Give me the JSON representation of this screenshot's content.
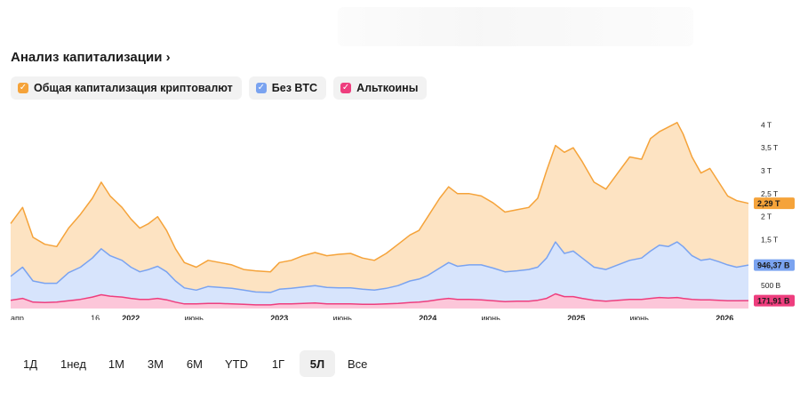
{
  "title": "Анализ капитализации",
  "title_icon": "chevron-right-icon",
  "legend": [
    {
      "label": "Общая капитализация криптовалют",
      "color": "#f5a33a"
    },
    {
      "label": "Без BTC",
      "color": "#7aa3f0"
    },
    {
      "label": "Альткоины",
      "color": "#ee3e7e"
    }
  ],
  "periods": [
    "1Д",
    "1нед",
    "1М",
    "3М",
    "6М",
    "YTD",
    "1Г",
    "5Л",
    "Все"
  ],
  "active_period": "5Л",
  "chart_data": {
    "type": "area",
    "title": "Анализ капитализации",
    "x_ticks": [
      {
        "label": "апр.",
        "t": 2021.25,
        "bold": false
      },
      {
        "label": "16",
        "t": 2021.79,
        "bold": false
      },
      {
        "label": "2022",
        "t": 2022.0,
        "bold": true
      },
      {
        "label": "июнь",
        "t": 2022.42,
        "bold": false
      },
      {
        "label": "2023",
        "t": 2023.0,
        "bold": true
      },
      {
        "label": "июнь",
        "t": 2023.42,
        "bold": false
      },
      {
        "label": "2024",
        "t": 2024.0,
        "bold": true
      },
      {
        "label": "июнь",
        "t": 2024.42,
        "bold": false
      },
      {
        "label": "2025",
        "t": 2025.0,
        "bold": true
      },
      {
        "label": "июнь",
        "t": 2025.42,
        "bold": false
      },
      {
        "label": "2026",
        "t": 2026.0,
        "bold": true
      }
    ],
    "x_range": [
      2021.25,
      2026.22
    ],
    "y_range_trillions": [
      0,
      4.2
    ],
    "y_ticks": [
      {
        "label": "4 T",
        "v": 4.0
      },
      {
        "label": "3,5 T",
        "v": 3.5
      },
      {
        "label": "3 T",
        "v": 3.0
      },
      {
        "label": "2,5 T",
        "v": 2.5
      },
      {
        "label": "2 T",
        "v": 2.0
      },
      {
        "label": "1,5 T",
        "v": 1.5
      },
      {
        "label": "500 B",
        "v": 0.5
      }
    ],
    "series": [
      {
        "name": "Общая капитализация криптовалют",
        "color": "#f5a33a",
        "fill": "#fde3c2",
        "last_label": "2,29 T",
        "points": [
          [
            2021.25,
            1.85
          ],
          [
            2021.33,
            2.2
          ],
          [
            2021.4,
            1.55
          ],
          [
            2021.48,
            1.4
          ],
          [
            2021.56,
            1.35
          ],
          [
            2021.64,
            1.75
          ],
          [
            2021.72,
            2.05
          ],
          [
            2021.8,
            2.4
          ],
          [
            2021.86,
            2.75
          ],
          [
            2021.92,
            2.45
          ],
          [
            2022.0,
            2.2
          ],
          [
            2022.06,
            1.95
          ],
          [
            2022.12,
            1.75
          ],
          [
            2022.18,
            1.85
          ],
          [
            2022.24,
            2.0
          ],
          [
            2022.3,
            1.7
          ],
          [
            2022.36,
            1.3
          ],
          [
            2022.42,
            1.0
          ],
          [
            2022.5,
            0.9
          ],
          [
            2022.58,
            1.05
          ],
          [
            2022.66,
            1.0
          ],
          [
            2022.74,
            0.95
          ],
          [
            2022.82,
            0.85
          ],
          [
            2022.9,
            0.82
          ],
          [
            2023.0,
            0.8
          ],
          [
            2023.06,
            1.0
          ],
          [
            2023.14,
            1.05
          ],
          [
            2023.22,
            1.15
          ],
          [
            2023.3,
            1.22
          ],
          [
            2023.38,
            1.15
          ],
          [
            2023.46,
            1.18
          ],
          [
            2023.54,
            1.2
          ],
          [
            2023.62,
            1.1
          ],
          [
            2023.7,
            1.05
          ],
          [
            2023.78,
            1.2
          ],
          [
            2023.86,
            1.4
          ],
          [
            2023.94,
            1.6
          ],
          [
            2024.0,
            1.7
          ],
          [
            2024.06,
            2.0
          ],
          [
            2024.14,
            2.4
          ],
          [
            2024.2,
            2.65
          ],
          [
            2024.26,
            2.5
          ],
          [
            2024.34,
            2.5
          ],
          [
            2024.42,
            2.45
          ],
          [
            2024.5,
            2.3
          ],
          [
            2024.58,
            2.1
          ],
          [
            2024.66,
            2.15
          ],
          [
            2024.74,
            2.2
          ],
          [
            2024.8,
            2.4
          ],
          [
            2024.86,
            3.0
          ],
          [
            2024.92,
            3.55
          ],
          [
            2024.98,
            3.4
          ],
          [
            2025.04,
            3.5
          ],
          [
            2025.1,
            3.2
          ],
          [
            2025.18,
            2.75
          ],
          [
            2025.26,
            2.6
          ],
          [
            2025.34,
            2.95
          ],
          [
            2025.42,
            3.3
          ],
          [
            2025.5,
            3.25
          ],
          [
            2025.56,
            3.7
          ],
          [
            2025.62,
            3.85
          ],
          [
            2025.68,
            3.95
          ],
          [
            2025.74,
            4.05
          ],
          [
            2025.78,
            3.8
          ],
          [
            2025.84,
            3.3
          ],
          [
            2025.9,
            2.95
          ],
          [
            2025.96,
            3.05
          ],
          [
            2026.02,
            2.75
          ],
          [
            2026.08,
            2.45
          ],
          [
            2026.14,
            2.35
          ],
          [
            2026.22,
            2.29
          ]
        ]
      },
      {
        "name": "Без BTC",
        "color": "#7aa3f0",
        "fill": "#d7e4fc",
        "last_label": "946,37 B",
        "points": [
          [
            2021.25,
            0.7
          ],
          [
            2021.33,
            0.9
          ],
          [
            2021.4,
            0.6
          ],
          [
            2021.48,
            0.55
          ],
          [
            2021.56,
            0.55
          ],
          [
            2021.64,
            0.78
          ],
          [
            2021.72,
            0.9
          ],
          [
            2021.8,
            1.1
          ],
          [
            2021.86,
            1.3
          ],
          [
            2021.92,
            1.15
          ],
          [
            2022.0,
            1.05
          ],
          [
            2022.06,
            0.9
          ],
          [
            2022.12,
            0.8
          ],
          [
            2022.18,
            0.85
          ],
          [
            2022.24,
            0.92
          ],
          [
            2022.3,
            0.8
          ],
          [
            2022.36,
            0.6
          ],
          [
            2022.42,
            0.45
          ],
          [
            2022.5,
            0.4
          ],
          [
            2022.58,
            0.48
          ],
          [
            2022.66,
            0.46
          ],
          [
            2022.74,
            0.44
          ],
          [
            2022.82,
            0.4
          ],
          [
            2022.9,
            0.36
          ],
          [
            2023.0,
            0.35
          ],
          [
            2023.06,
            0.42
          ],
          [
            2023.14,
            0.44
          ],
          [
            2023.22,
            0.47
          ],
          [
            2023.3,
            0.5
          ],
          [
            2023.38,
            0.46
          ],
          [
            2023.46,
            0.45
          ],
          [
            2023.54,
            0.45
          ],
          [
            2023.62,
            0.42
          ],
          [
            2023.7,
            0.4
          ],
          [
            2023.78,
            0.44
          ],
          [
            2023.86,
            0.5
          ],
          [
            2023.94,
            0.6
          ],
          [
            2024.0,
            0.64
          ],
          [
            2024.06,
            0.72
          ],
          [
            2024.14,
            0.88
          ],
          [
            2024.2,
            1.0
          ],
          [
            2024.26,
            0.92
          ],
          [
            2024.34,
            0.95
          ],
          [
            2024.42,
            0.95
          ],
          [
            2024.5,
            0.88
          ],
          [
            2024.58,
            0.8
          ],
          [
            2024.66,
            0.82
          ],
          [
            2024.74,
            0.85
          ],
          [
            2024.8,
            0.9
          ],
          [
            2024.86,
            1.1
          ],
          [
            2024.92,
            1.45
          ],
          [
            2024.98,
            1.2
          ],
          [
            2025.04,
            1.25
          ],
          [
            2025.1,
            1.1
          ],
          [
            2025.18,
            0.9
          ],
          [
            2025.26,
            0.85
          ],
          [
            2025.34,
            0.95
          ],
          [
            2025.42,
            1.05
          ],
          [
            2025.5,
            1.1
          ],
          [
            2025.56,
            1.25
          ],
          [
            2025.62,
            1.38
          ],
          [
            2025.68,
            1.35
          ],
          [
            2025.74,
            1.45
          ],
          [
            2025.78,
            1.35
          ],
          [
            2025.84,
            1.15
          ],
          [
            2025.9,
            1.05
          ],
          [
            2025.96,
            1.08
          ],
          [
            2026.02,
            1.02
          ],
          [
            2026.08,
            0.95
          ],
          [
            2026.14,
            0.9
          ],
          [
            2026.22,
            0.946
          ]
        ]
      },
      {
        "name": "Альткоины",
        "color": "#ee3e7e",
        "fill": "#fcc6d9",
        "last_label": "171,91 B",
        "points": [
          [
            2021.25,
            0.18
          ],
          [
            2021.33,
            0.22
          ],
          [
            2021.4,
            0.14
          ],
          [
            2021.48,
            0.13
          ],
          [
            2021.56,
            0.14
          ],
          [
            2021.64,
            0.17
          ],
          [
            2021.72,
            0.2
          ],
          [
            2021.8,
            0.25
          ],
          [
            2021.86,
            0.3
          ],
          [
            2021.92,
            0.27
          ],
          [
            2022.0,
            0.25
          ],
          [
            2022.06,
            0.22
          ],
          [
            2022.12,
            0.2
          ],
          [
            2022.18,
            0.2
          ],
          [
            2022.24,
            0.22
          ],
          [
            2022.3,
            0.19
          ],
          [
            2022.36,
            0.14
          ],
          [
            2022.42,
            0.1
          ],
          [
            2022.5,
            0.1
          ],
          [
            2022.58,
            0.11
          ],
          [
            2022.66,
            0.11
          ],
          [
            2022.74,
            0.1
          ],
          [
            2022.82,
            0.09
          ],
          [
            2022.9,
            0.08
          ],
          [
            2023.0,
            0.08
          ],
          [
            2023.06,
            0.1
          ],
          [
            2023.14,
            0.1
          ],
          [
            2023.22,
            0.11
          ],
          [
            2023.3,
            0.12
          ],
          [
            2023.38,
            0.1
          ],
          [
            2023.46,
            0.1
          ],
          [
            2023.54,
            0.1
          ],
          [
            2023.62,
            0.09
          ],
          [
            2023.7,
            0.09
          ],
          [
            2023.78,
            0.1
          ],
          [
            2023.86,
            0.11
          ],
          [
            2023.94,
            0.13
          ],
          [
            2024.0,
            0.14
          ],
          [
            2024.06,
            0.16
          ],
          [
            2024.14,
            0.2
          ],
          [
            2024.2,
            0.22
          ],
          [
            2024.26,
            0.2
          ],
          [
            2024.34,
            0.2
          ],
          [
            2024.42,
            0.19
          ],
          [
            2024.5,
            0.17
          ],
          [
            2024.58,
            0.15
          ],
          [
            2024.66,
            0.16
          ],
          [
            2024.74,
            0.16
          ],
          [
            2024.8,
            0.18
          ],
          [
            2024.86,
            0.22
          ],
          [
            2024.92,
            0.32
          ],
          [
            2024.98,
            0.26
          ],
          [
            2025.04,
            0.26
          ],
          [
            2025.1,
            0.22
          ],
          [
            2025.18,
            0.18
          ],
          [
            2025.26,
            0.16
          ],
          [
            2025.34,
            0.18
          ],
          [
            2025.42,
            0.2
          ],
          [
            2025.5,
            0.2
          ],
          [
            2025.56,
            0.22
          ],
          [
            2025.62,
            0.24
          ],
          [
            2025.68,
            0.23
          ],
          [
            2025.74,
            0.24
          ],
          [
            2025.78,
            0.22
          ],
          [
            2025.84,
            0.2
          ],
          [
            2025.9,
            0.19
          ],
          [
            2025.96,
            0.19
          ],
          [
            2026.02,
            0.18
          ],
          [
            2026.08,
            0.17
          ],
          [
            2026.14,
            0.17
          ],
          [
            2026.22,
            0.172
          ]
        ]
      }
    ]
  }
}
